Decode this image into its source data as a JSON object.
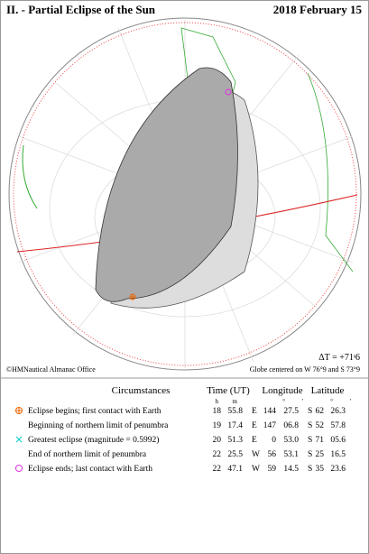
{
  "header": {
    "title": "II. - Partial Eclipse of the Sun",
    "date": "2018 February 15"
  },
  "globe": {
    "delta_t": "ΔT = +71ˢ6",
    "credit": "©HMNautical Almanac Office",
    "center": "Globe centered on W 76°9 and S 73°9"
  },
  "table": {
    "headers": [
      "Circumstances",
      "Time (UT)",
      "Longitude",
      "Latitude"
    ],
    "units": [
      "h",
      "m",
      "°",
      "'",
      "°",
      "'"
    ],
    "rows": [
      [
        "Eclipse begins; first contact with Earth",
        "18",
        "55.8",
        "E",
        "144",
        "27.5",
        "S",
        "62",
        "26.3"
      ],
      [
        "Beginning of northern limit of penumbra",
        "19",
        "17.4",
        "E",
        "147",
        "06.8",
        "S",
        "52",
        "57.8"
      ],
      [
        "Greatest eclipse (magnitude = 0.5992)",
        "20",
        "51.3",
        "E",
        "0",
        "53.0",
        "S",
        "71",
        "05.6"
      ],
      [
        "End of northern limit of penumbra",
        "22",
        "25.5",
        "W",
        "56",
        "53.1",
        "S",
        "25",
        "16.5"
      ],
      [
        "Eclipse ends; last contact with Earth",
        "22",
        "47.1",
        "W",
        "59",
        "14.5",
        "S",
        "35",
        "23.6"
      ]
    ]
  }
}
